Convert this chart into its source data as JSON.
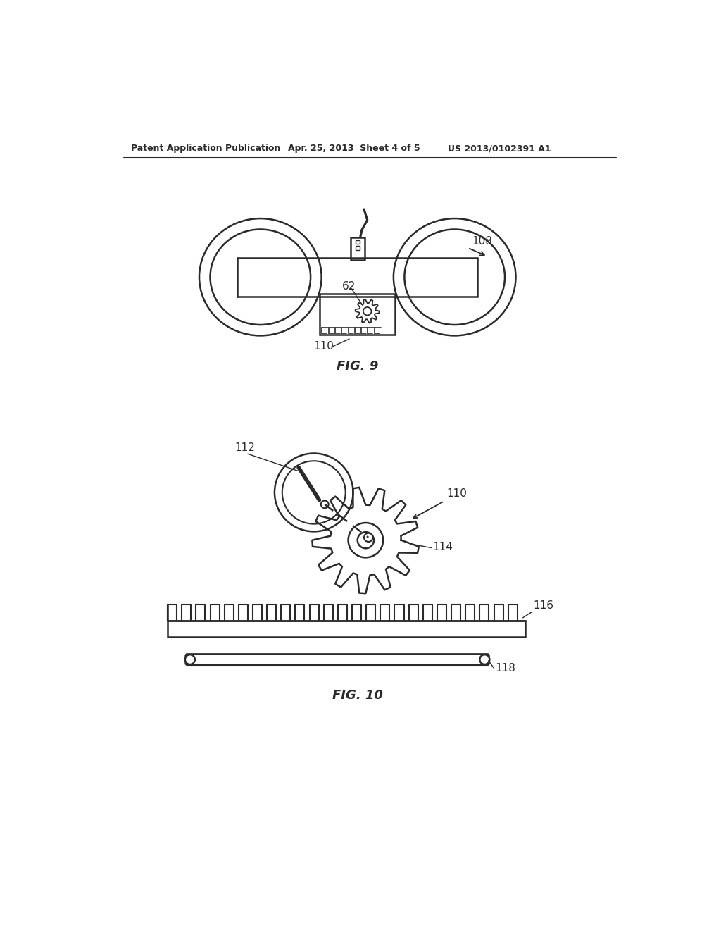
{
  "bg_color": "#ffffff",
  "line_color": "#2a2a2a",
  "header_left": "Patent Application Publication",
  "header_mid": "Apr. 25, 2013  Sheet 4 of 5",
  "header_right": "US 2013/0102391 A1",
  "fig9_label": "FIG. 9",
  "fig10_label": "FIG. 10",
  "label_108": "108",
  "label_62": "62",
  "label_110": "110",
  "label_112": "112",
  "label_110b": "110",
  "label_114": "114",
  "label_116": "116",
  "label_118": "118"
}
